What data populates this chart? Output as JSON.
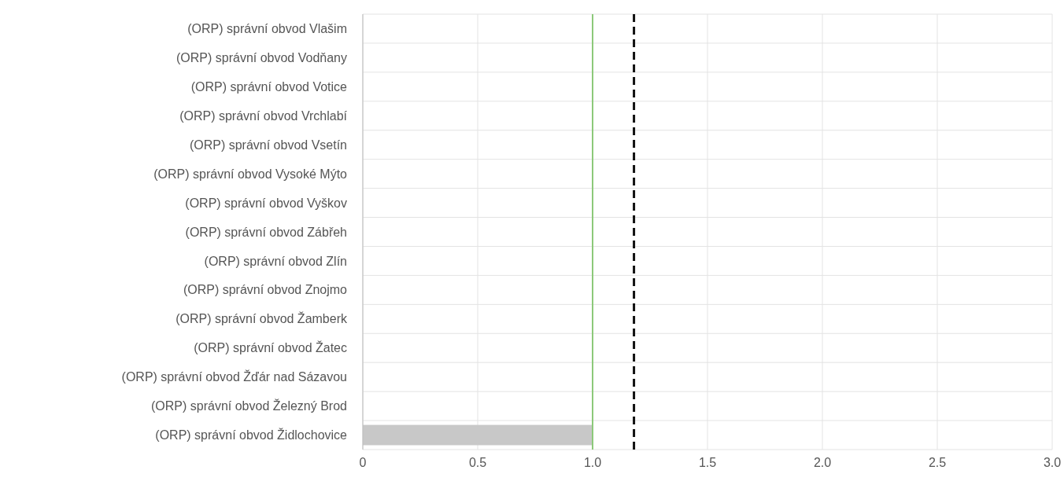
{
  "chart_data": {
    "type": "bar",
    "orientation": "horizontal",
    "categories": [
      "(ORP) správní obvod Vlašim",
      "(ORP) správní obvod Vodňany",
      "(ORP) správní obvod Votice",
      "(ORP) správní obvod Vrchlabí",
      "(ORP) správní obvod Vsetín",
      "(ORP) správní obvod Vysoké Mýto",
      "(ORP) správní obvod Vyškov",
      "(ORP) správní obvod Zábřeh",
      "(ORP) správní obvod Zlín",
      "(ORP) správní obvod Znojmo",
      "(ORP) správní obvod Žamberk",
      "(ORP) správní obvod Žatec",
      "(ORP) správní obvod Žďár nad Sázavou",
      "(ORP) správní obvod Železný Brod",
      "(ORP) správní obvod Židlochovice"
    ],
    "values": [
      null,
      null,
      null,
      null,
      null,
      null,
      null,
      null,
      null,
      null,
      null,
      null,
      null,
      null,
      1.0
    ],
    "color": "#c8c8c8",
    "xlim": [
      0,
      3
    ],
    "xticks": [
      0,
      0.5,
      {
        "value": 1,
        "label": "1.0"
      },
      1.5,
      {
        "value": 2,
        "label": "2.0"
      },
      2.5,
      {
        "value": 3,
        "label": "3.0"
      }
    ],
    "grid": true,
    "ref_lines": [
      {
        "axis": "x",
        "value": 1.0,
        "color": "#8cc97a",
        "line_style": "solid"
      },
      {
        "axis": "x",
        "value": 1.18,
        "color": "#111111",
        "line_style": "dashed"
      }
    ]
  }
}
